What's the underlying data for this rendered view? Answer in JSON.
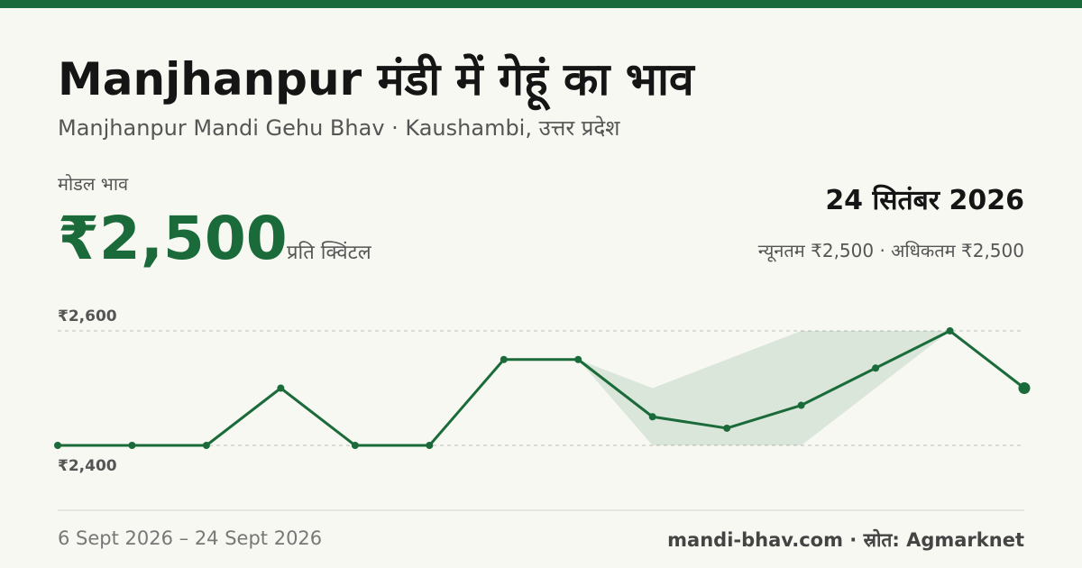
{
  "header": {
    "title": "Manjhanpur मंडी में गेहूं का भाव",
    "subtitle": "Manjhanpur Mandi Gehu Bhav · Kaushambi, उत्तर प्रदेश"
  },
  "summary": {
    "label": "मोडल भाव",
    "price": "₹2,500",
    "unit": "प्रति क्विंटल",
    "date": "24 सितंबर 2026",
    "min_max": "न्यूनतम ₹2,500 · अधिकतम ₹2,500"
  },
  "footer": {
    "range": "6 Sept 2026 – 24 Sept 2026",
    "source": "mandi-bhav.com · स्रोत: Agmarknet"
  },
  "chart_data": {
    "type": "line",
    "values": [
      2400,
      2400,
      2400,
      2500,
      2400,
      2400,
      2550,
      2550,
      2450,
      2430,
      2470,
      2535,
      2600,
      2500
    ],
    "min_values": [
      null,
      null,
      null,
      null,
      null,
      null,
      null,
      2550,
      2400,
      2400,
      2400,
      2500,
      2600,
      null
    ],
    "max_values": [
      null,
      null,
      null,
      null,
      null,
      null,
      null,
      2550,
      2500,
      2550,
      2600,
      2600,
      2600,
      null
    ],
    "color": "#1b6b3a",
    "band_color": "#1b6b3a",
    "ylim": [
      2400,
      2600
    ],
    "yticks": [
      {
        "value": 2400,
        "label": "₹2,400"
      },
      {
        "value": 2600,
        "label": "₹2,600"
      }
    ],
    "grid": true
  }
}
